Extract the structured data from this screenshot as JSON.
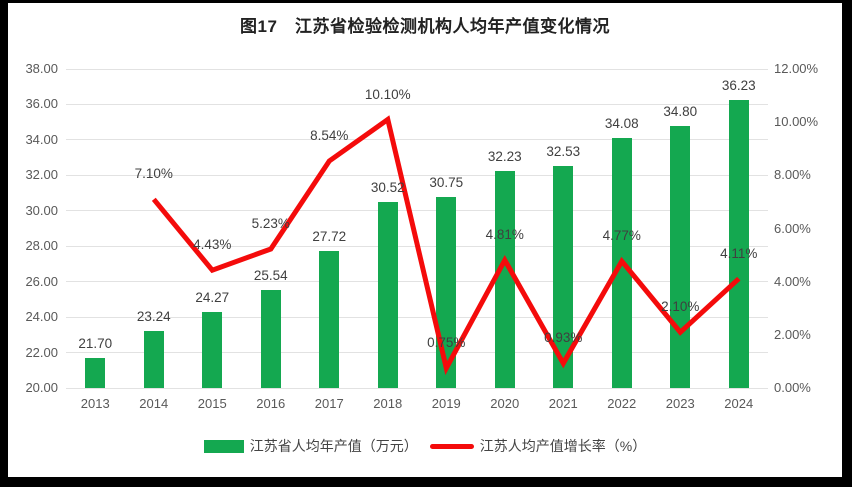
{
  "title": "图17　江苏省检验检测机构人均年产值变化情况",
  "colors": {
    "bar_green": "#14a850",
    "line_red": "#f40b0b",
    "gridline": "#e2e2e2",
    "axis_text": "#595959",
    "label_text": "#3f3f3f",
    "frame_black": "#000000",
    "panel_white": "#ffffff"
  },
  "chart_data": {
    "type": "bar+line",
    "title": "图17　江苏省检验检测机构人均年产值变化情况",
    "categories": [
      "2013",
      "2014",
      "2015",
      "2016",
      "2017",
      "2018",
      "2019",
      "2020",
      "2021",
      "2022",
      "2023",
      "2024"
    ],
    "series": [
      {
        "name": "江苏省人均年产值（万元）",
        "type": "bar",
        "axis": "left",
        "color": "#14a850",
        "values": [
          21.7,
          23.24,
          24.27,
          25.54,
          27.72,
          30.52,
          30.75,
          32.23,
          32.53,
          34.08,
          34.8,
          36.23
        ]
      },
      {
        "name": "江苏人均产值增长率（%）",
        "type": "line",
        "axis": "right",
        "color": "#f40b0b",
        "values": [
          null,
          7.1,
          4.43,
          5.23,
          8.54,
          10.1,
          0.75,
          4.81,
          0.93,
          4.77,
          2.1,
          4.11
        ]
      }
    ],
    "left_axis": {
      "min": 20,
      "max": 38,
      "step": 2,
      "ticks": [
        "38.00",
        "36.00",
        "34.00",
        "32.00",
        "30.00",
        "28.00",
        "26.00",
        "24.00",
        "22.00",
        "20.00"
      ]
    },
    "right_axis": {
      "min": 0,
      "max": 12,
      "step": 2,
      "ticks": [
        "12.00%",
        "10.00%",
        "8.00%",
        "6.00%",
        "4.00%",
        "2.00%",
        "0.00%"
      ]
    },
    "grid": true,
    "legend_position": "bottom"
  },
  "legend": {
    "bar_label": "江苏省人均年产值（万元）",
    "line_label": "江苏人均产值增长率（%）"
  }
}
